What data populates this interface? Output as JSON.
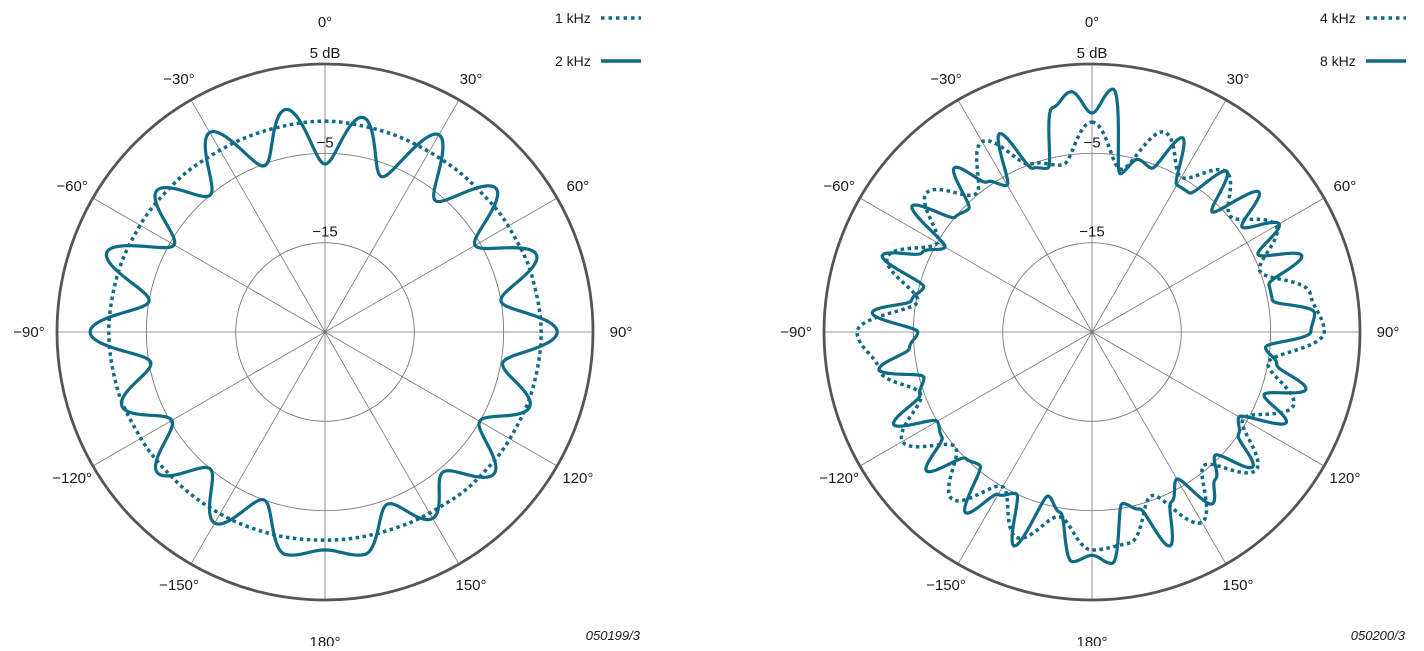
{
  "colors": {
    "series": "#0f6b85",
    "grid": "#777777",
    "outer": "#555555",
    "text": "#1a1a1a"
  },
  "chart_data": [
    {
      "type": "polar-line",
      "figure_id": "050199/3",
      "angle_ticks": [
        "0°",
        "30°",
        "60°",
        "90°",
        "120°",
        "150°",
        "180°",
        "−150°",
        "−120°",
        "−90°",
        "−60°",
        "−30°"
      ],
      "radial_range_db": [
        -25,
        5
      ],
      "radial_rings": [
        {
          "value": 5,
          "label": "5 dB"
        },
        {
          "value": -5,
          "label": "−5"
        },
        {
          "value": -15,
          "label": "−15"
        }
      ],
      "grid": true,
      "legend_position": "top-right",
      "series": [
        {
          "name": "1 kHz",
          "style": "dotted",
          "angle_deg": [
            0,
            15,
            30,
            45,
            60,
            75,
            90,
            105,
            120,
            135,
            150,
            165,
            180,
            195,
            210,
            225,
            240,
            255,
            270,
            285,
            300,
            315,
            330,
            345
          ],
          "level_db": [
            -1.4,
            -1.6,
            -1.7,
            -1.6,
            -1.3,
            -1.0,
            -0.8,
            -0.9,
            -1.1,
            -1.3,
            -1.6,
            -1.7,
            -1.7,
            -1.6,
            -1.5,
            -1.4,
            -1.2,
            -0.9,
            -0.8,
            -0.9,
            -1.1,
            -1.3,
            -1.5,
            -1.5
          ]
        },
        {
          "name": "2 kHz",
          "style": "solid",
          "angle_deg": [
            0,
            10,
            20,
            30,
            40,
            50,
            60,
            70,
            80,
            90,
            100,
            110,
            120,
            130,
            140,
            150,
            160,
            170,
            180,
            190,
            200,
            210,
            220,
            230,
            240,
            250,
            260,
            270,
            280,
            290,
            300,
            310,
            320,
            330,
            340,
            350
          ],
          "level_db": [
            -6.2,
            -0.6,
            -6.5,
            0.5,
            -5.8,
            0.0,
            -5.6,
            0.2,
            -5.0,
            1.0,
            -4.8,
            -0.6,
            -5.0,
            -0.3,
            -4.5,
            -0.9,
            -4.5,
            0.3,
            -0.6,
            0.3,
            -5.0,
            -0.3,
            -5.0,
            -0.5,
            -5.2,
            -0.8,
            -5.2,
            1.3,
            -5.0,
            1.0,
            -5.5,
            -0.4,
            -5.0,
            0.8,
            -5.2,
            0.3
          ]
        }
      ]
    },
    {
      "type": "polar-line",
      "figure_id": "050200/3",
      "angle_ticks": [
        "0°",
        "30°",
        "60°",
        "90°",
        "120°",
        "150°",
        "180°",
        "−150°",
        "−120°",
        "−90°",
        "−60°",
        "−30°"
      ],
      "radial_range_db": [
        -25,
        5
      ],
      "radial_rings": [
        {
          "value": 5,
          "label": "5 dB"
        },
        {
          "value": -5,
          "label": "−5"
        },
        {
          "value": -15,
          "label": "−15"
        }
      ],
      "grid": true,
      "legend_position": "top-right",
      "series": [
        {
          "name": "4 kHz",
          "style": "dotted",
          "angle_deg": [
            0,
            10,
            20,
            30,
            40,
            50,
            60,
            70,
            80,
            90,
            100,
            110,
            120,
            130,
            140,
            150,
            160,
            170,
            180,
            190,
            200,
            210,
            220,
            230,
            240,
            250,
            260,
            270,
            280,
            290,
            300,
            310,
            320,
            330,
            340,
            350
          ],
          "level_db": [
            -1.5,
            -6.5,
            -1.2,
            -5.0,
            -1.6,
            -4.8,
            -1.2,
            -5.0,
            -0.2,
            1.0,
            -5.0,
            -1.0,
            -5.5,
            -1.0,
            -5.5,
            -0.4,
            -5.5,
            -1.0,
            -0.6,
            -4.0,
            -0.5,
            -5.0,
            -0.6,
            -5.0,
            -0.5,
            -4.6,
            -0.8,
            1.3,
            -5.2,
            -0.6,
            -5.0,
            -0.8,
            -4.8,
            -0.4,
            -5.0,
            -6.0
          ],
          "note": "rapidly alternating lobes between roughly −6.5 and +1.3 dB"
        },
        {
          "name": "8 kHz",
          "style": "solid",
          "angle_deg": [
            0,
            5,
            10,
            15,
            20,
            25,
            30,
            35,
            40,
            45,
            50,
            55,
            60,
            65,
            70,
            75,
            80,
            85,
            90,
            95,
            100,
            105,
            110,
            115,
            120,
            125,
            130,
            135,
            140,
            145,
            150,
            155,
            160,
            165,
            170,
            175,
            180,
            185,
            190,
            195,
            200,
            205,
            210,
            215,
            220,
            225,
            230,
            235,
            240,
            245,
            250,
            255,
            260,
            265,
            270,
            275,
            280,
            285,
            290,
            295,
            300,
            305,
            310,
            315,
            320,
            325,
            330,
            335,
            340,
            345,
            350,
            355
          ],
          "level_db": [
            -0.5,
            2.3,
            -7.0,
            -5.0,
            -5.5,
            -1.0,
            -6.0,
            -6.0,
            -1.5,
            -6.0,
            -0.6,
            -4.5,
            -0.8,
            -4.5,
            0.0,
            -4.5,
            -4.5,
            0.0,
            -0.5,
            -5.5,
            -4.0,
            -0.2,
            -4.5,
            -1.0,
            -6.0,
            -5.0,
            -1.5,
            -5.5,
            -3.5,
            -1.5,
            -6.0,
            -4.0,
            0.5,
            -4.5,
            -5.5,
            1.0,
            0.0,
            0.8,
            -4.5,
            -6.0,
            0.5,
            -5.0,
            -4.0,
            -0.3,
            -5.5,
            -5.0,
            -0.8,
            -4.5,
            -5.0,
            -0.5,
            -4.5,
            -5.5,
            -0.8,
            -4.5,
            -5.5,
            -0.3,
            -4.5,
            -5.5,
            0.0,
            -4.0,
            -6.0,
            -0.4,
            -5.0,
            -5.5,
            -1.0,
            -4.5,
            -6.0,
            -0.5,
            -5.5,
            -6.0,
            0.5,
            2.0
          ],
          "note": "approximate trace"
        }
      ]
    }
  ]
}
